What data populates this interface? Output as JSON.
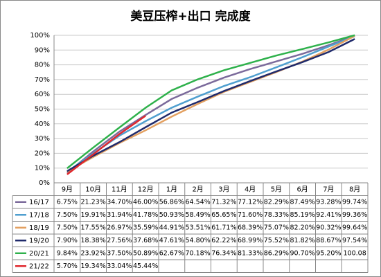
{
  "chart_data": {
    "type": "line",
    "title": "美豆压榨+出口 完成度",
    "categories": [
      "9月",
      "10月",
      "11月",
      "12月",
      "1月",
      "2月",
      "3月",
      "4月",
      "5月",
      "6月",
      "7月",
      "8月"
    ],
    "ylim": [
      0,
      100
    ],
    "yticks": [
      {
        "value": 0,
        "label": "0%"
      },
      {
        "value": 10,
        "label": "10%"
      },
      {
        "value": 20,
        "label": "20%"
      },
      {
        "value": 30,
        "label": "30%"
      },
      {
        "value": 40,
        "label": "40%"
      },
      {
        "value": 50,
        "label": "50%"
      },
      {
        "value": 60,
        "label": "60%"
      },
      {
        "value": 70,
        "label": "70%"
      },
      {
        "value": 80,
        "label": "80%"
      },
      {
        "value": 90,
        "label": "90%"
      },
      {
        "value": 100,
        "label": "100%"
      }
    ],
    "grid": true,
    "series": [
      {
        "name": "16/17",
        "color": "#7b6a9b",
        "values": [
          6.75,
          21.23,
          34.7,
          46.0,
          56.86,
          64.54,
          71.32,
          77.12,
          82.29,
          87.49,
          93.28,
          99.74
        ],
        "value_labels": [
          "6.75%",
          "21.23%",
          "34.70%",
          "46.00%",
          "56.86%",
          "64.54%",
          "71.32%",
          "77.12%",
          "82.29%",
          "87.49%",
          "93.28%",
          "99.74%"
        ]
      },
      {
        "name": "17/18",
        "color": "#4f9fcf",
        "values": [
          7.5,
          19.91,
          31.94,
          41.78,
          50.93,
          58.49,
          65.65,
          71.6,
          78.33,
          85.19,
          92.41,
          99.36
        ],
        "value_labels": [
          "7.50%",
          "19.91%",
          "31.94%",
          "41.78%",
          "50.93%",
          "58.49%",
          "65.65%",
          "71.60%",
          "78.33%",
          "85.19%",
          "92.41%",
          "99.36%"
        ]
      },
      {
        "name": "18/19",
        "color": "#e3a060",
        "values": [
          7.5,
          17.55,
          26.97,
          35.59,
          44.91,
          53.51,
          61.71,
          68.39,
          75.07,
          82.2,
          90.32,
          99.64
        ],
        "value_labels": [
          "7.50%",
          "17.55%",
          "26.97%",
          "35.59%",
          "44.91%",
          "53.51%",
          "61.71%",
          "68.39%",
          "75.07%",
          "82.20%",
          "90.32%",
          "99.64%"
        ]
      },
      {
        "name": "19/20",
        "color": "#1f2a6b",
        "values": [
          7.9,
          18.38,
          27.56,
          37.68,
          47.61,
          54.8,
          62.22,
          68.99,
          75.52,
          81.82,
          88.67,
          97.54
        ],
        "value_labels": [
          "7.90%",
          "18.38%",
          "27.56%",
          "37.68%",
          "47.61%",
          "54.80%",
          "62.22%",
          "68.99%",
          "75.52%",
          "81.82%",
          "88.67%",
          "97.54%"
        ]
      },
      {
        "name": "20/21",
        "color": "#2eb14b",
        "values": [
          9.84,
          23.92,
          37.5,
          50.89,
          62.67,
          70.18,
          76.34,
          81.33,
          86.29,
          90.7,
          95.2,
          100.08
        ],
        "value_labels": [
          "9.84%",
          "23.92%",
          "37.50%",
          "50.89%",
          "62.67%",
          "70.18%",
          "76.34%",
          "81.33%",
          "86.29%",
          "90.70%",
          "95.20%",
          "100.08"
        ]
      },
      {
        "name": "21/22",
        "color": "#e0282e",
        "values": [
          5.7,
          19.34,
          33.04,
          45.44,
          null,
          null,
          null,
          null,
          null,
          null,
          null,
          null
        ],
        "value_labels": [
          "5.70%",
          "19.34%",
          "33.04%",
          "45.44%",
          null,
          null,
          null,
          null,
          null,
          null,
          null,
          null
        ]
      }
    ]
  }
}
